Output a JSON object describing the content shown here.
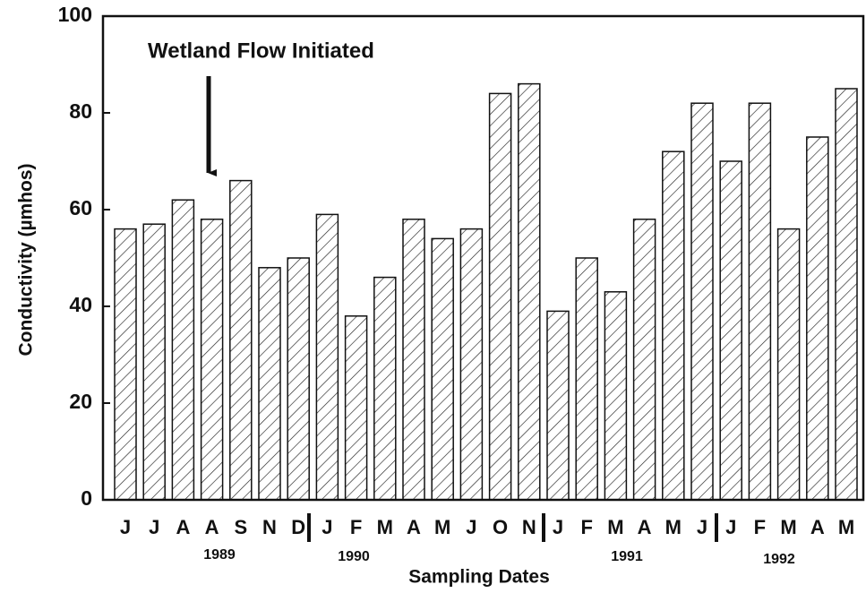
{
  "chart_data": {
    "type": "bar",
    "title": "Wetland Flow Initiated",
    "y_label": "Conductivity (µmhos)",
    "x_label": "Sampling Dates",
    "categories": [
      "J",
      "J",
      "A",
      "A",
      "S",
      "N",
      "D",
      "J",
      "F",
      "M",
      "A",
      "M",
      "J",
      "O",
      "N",
      "J",
      "F",
      "M",
      "A",
      "M",
      "J",
      "J",
      "F",
      "M",
      "A",
      "M"
    ],
    "values": [
      56,
      57,
      62,
      58,
      66,
      48,
      50,
      59,
      38,
      46,
      58,
      54,
      56,
      84,
      86,
      39,
      50,
      43,
      58,
      72,
      82,
      70,
      82,
      56,
      75,
      85
    ],
    "years": [
      "1989",
      "1990",
      "1991",
      "1992"
    ],
    "color": "#111111",
    "ylim": [
      0,
      100
    ],
    "yticks": [
      0,
      20,
      40,
      60,
      80,
      100
    ]
  }
}
